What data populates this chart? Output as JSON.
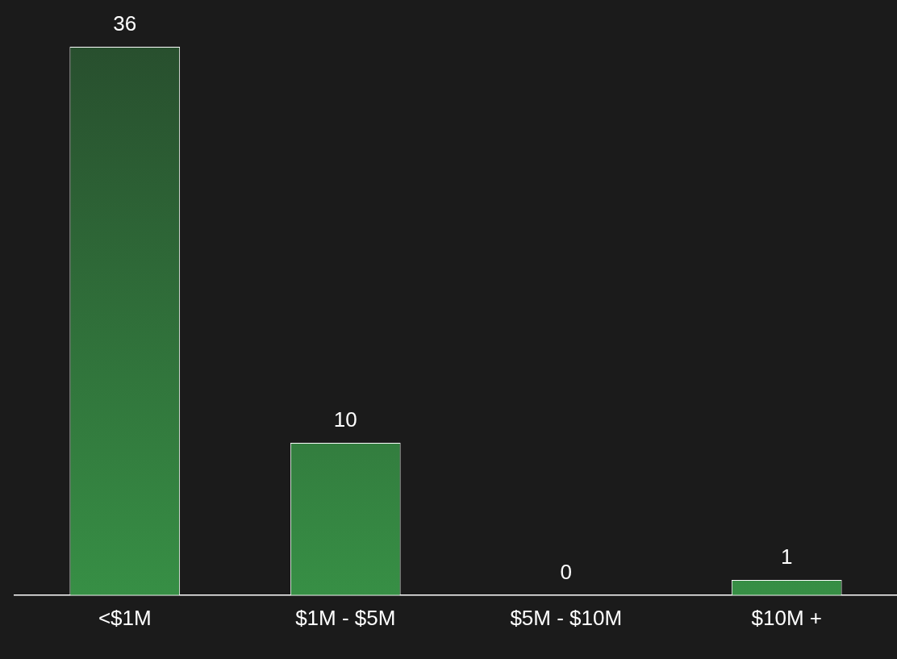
{
  "chart_data": {
    "type": "bar",
    "categories": [
      "<$1M",
      "$1M - $5M",
      "$5M - $10M",
      "$10M +"
    ],
    "values": [
      36,
      10,
      0,
      1
    ],
    "color": "#378f45",
    "data_labels": true,
    "grid": false,
    "legend": false,
    "tick_labels": "x"
  }
}
